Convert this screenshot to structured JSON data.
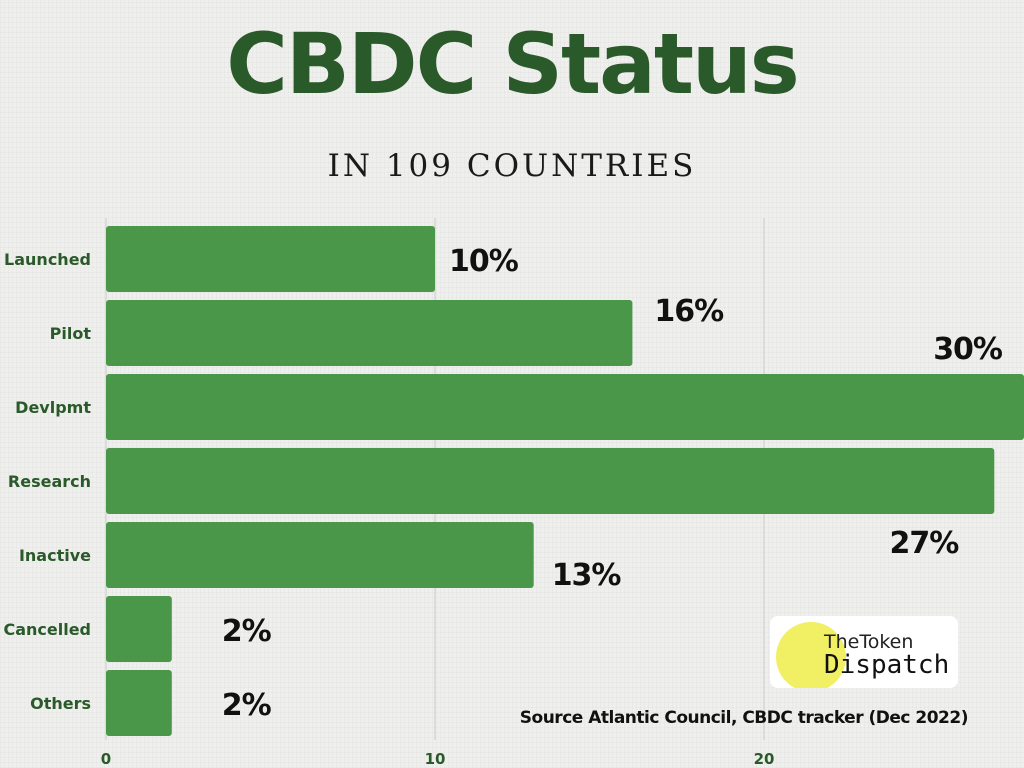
{
  "chart_data": {
    "type": "bar",
    "orientation": "horizontal",
    "title": "CBDC Status",
    "subtitle": "IN 109 COUNTRIES",
    "categories": [
      "Launched",
      "Pilot",
      "Devlpmt",
      "Research",
      "Inactive",
      "Cancelled",
      "Others"
    ],
    "values": [
      10,
      16,
      30,
      27,
      13,
      2,
      2
    ],
    "value_labels": [
      "10%",
      "16%",
      "30%",
      "27%",
      "13%",
      "2%",
      "2%"
    ],
    "x_ticks": [
      0,
      10,
      20
    ],
    "x_tick_labels": [
      "0",
      "10",
      "20"
    ],
    "xlim": [
      0,
      28
    ],
    "grid": true,
    "bar_color": "#4a974a",
    "label_color": "#2a5a2a",
    "source": "Source Atlantic Council,  CBDC tracker (Dec 2022)"
  },
  "logo": {
    "line1": "TheToken",
    "line2": "Dispatch",
    "circle_color": "#f1ef63"
  }
}
